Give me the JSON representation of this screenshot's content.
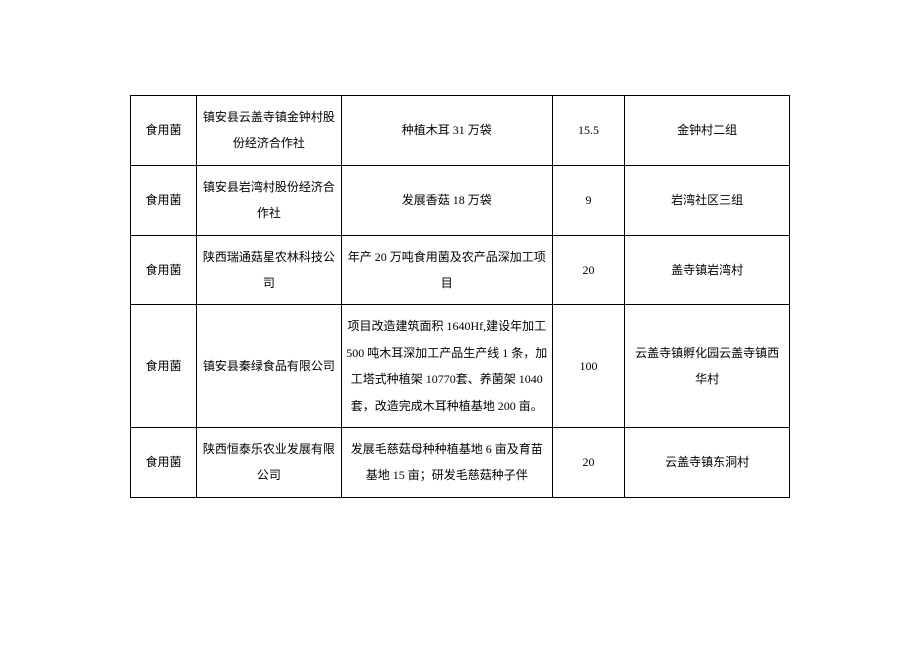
{
  "table": {
    "columns": [
      {
        "key": "category",
        "width": "10%"
      },
      {
        "key": "company",
        "width": "22%"
      },
      {
        "key": "description",
        "width": "32%"
      },
      {
        "key": "value",
        "width": "11%"
      },
      {
        "key": "location",
        "width": "25%"
      }
    ],
    "rows": [
      {
        "category": "食用菌",
        "company": "镇安县云盖寺镇金钟村股份经济合作社",
        "description": "种植木耳 31 万袋",
        "value": "15.5",
        "location": "金钟村二组"
      },
      {
        "category": "食用菌",
        "company": "镇安县岩湾村股份经济合作社",
        "description": "发展香菇 18 万袋",
        "value": "9",
        "location": "岩湾社区三组"
      },
      {
        "category": "食用菌",
        "company": "陕西瑞通菇星农林科技公司",
        "description": "年产 20 万吨食用菌及农产品深加工项目",
        "value": "20",
        "location": "盖寺镇岩湾村"
      },
      {
        "category": "食用菌",
        "company": "镇安县秦绿食品有限公司",
        "description": "项目改造建筑面积 1640Hf,建设年加工 500 吨木耳深加工产品生产线 1 条，加工塔式种植架 10770套、养菌架 1040 套，改造完成木耳种植基地 200 亩。",
        "value": "100",
        "location": "云盖寺镇孵化园云盖寺镇西华村"
      },
      {
        "category": "食用菌",
        "company": "陕西恒泰乐农业发展有限公司",
        "description": "发展毛慈菇母种种植基地 6 亩及育苗基地 15 亩；研发毛慈菇种子伴",
        "value": "20",
        "location": "云盖寺镇东洞村"
      }
    ],
    "styling": {
      "border_color": "#000000",
      "background_color": "#ffffff",
      "text_color": "#000000",
      "font_family": "SimSun",
      "font_size": 12,
      "line_height": 2.2
    }
  }
}
